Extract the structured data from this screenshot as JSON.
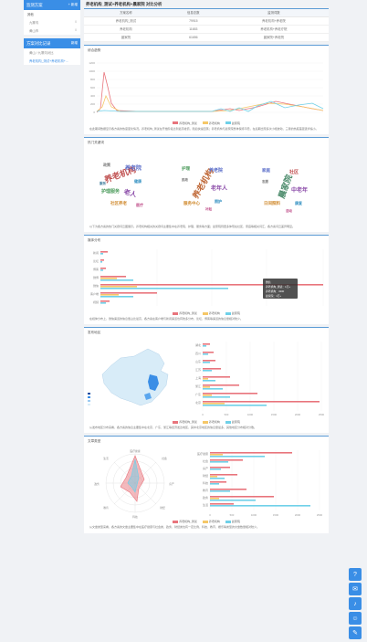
{
  "sidebar": {
    "scheme_header": "监测方案",
    "scheme_add": "+ 新增",
    "scheme_items": [
      {
        "label": "其他",
        "count": ""
      },
      {
        "label": "九寨沟",
        "count": "0"
      },
      {
        "label": "黄山市",
        "count": "0"
      }
    ],
    "record_header": "方案对比记录",
    "record_add": "新增",
    "record_items": [
      "黄山 / 九寨沟对比",
      "养老机构_测试+养老机构+..."
    ]
  },
  "page_title": "养老机构_测试+养老机构+晨家院 对比分析",
  "summary": {
    "headers": [
      "方案名称",
      "信息总数",
      "监测词数"
    ],
    "rows": [
      [
        "养老机构_测试",
        "79915",
        "养老机构+养老院"
      ],
      [
        "养老机构",
        "11653",
        "养老机构+养老疗院"
      ],
      [
        "晨家院",
        "61656",
        "晨家院+养老院"
      ]
    ]
  },
  "trend": {
    "title": "综合趋势",
    "yticks": [
      "0",
      "200",
      "400",
      "600",
      "800",
      "1000",
      "1200"
    ],
    "desc": "在此期间数据显示各方案的热度变化情况。养老机构_测试在开始阶段达到最高峰值，随后快速回落；养老机构与晨家院整体保持平稳，在后期出现多次小幅波动，三者的热度差距逐步缩小。"
  },
  "cloud": {
    "title": "热门关键词",
    "desc": "以下为各方案的热门关键词云图展示。养老机构相关的关键词主要集中在养老院、护理、服务等方面；晨家院则更多体现在社区、家庭等相关词汇，各方案词云差异明显。"
  },
  "media": {
    "title": "媒体分布",
    "categories": [
      "新闻",
      "论坛",
      "博客",
      "微博",
      "微信",
      "客户端",
      "视频"
    ],
    "tooltip": {
      "title": "微信",
      "lines": [
        "养老机构_测试：1万+",
        "养老机构：4300",
        "晨家院：1万+"
      ]
    },
    "desc": "在媒体分布上，微信渠道的信息量占比最高，各方案在客户端与新闻渠道也有较多分布，论坛、博客等渠道的信息量相对较少。"
  },
  "region": {
    "title": "发布地区",
    "provinces": [
      "北京",
      "广东",
      "浙江",
      "上海",
      "江苏",
      "山东",
      "四川",
      "湖北"
    ],
    "xticks": [
      "0",
      "500",
      "1000",
      "1500",
      "2000",
      "2500"
    ],
    "desc": "从发布地区分布来看，各方案的信息主要集中在北京、广东、浙江等经济发达地区，其中北京地区的信息量最多，其他地区分布相对分散。"
  },
  "article": {
    "title": "文章类型",
    "categories": [
      "医疗健康",
      "社会",
      "房产",
      "财经",
      "科技",
      "教育",
      "政务",
      "生活",
      "娱乐"
    ],
    "xticks": [
      "0",
      "500",
      "1000",
      "1500",
      "2000",
      "2500"
    ],
    "desc": "从文章类型来看，各方案的文章主要集中在医疗健康与社会类，政务、财经类也有一定比例，科技、教育、娱乐等类型的文章数量相对较少。"
  },
  "legend": {
    "a": "养老机构_测试",
    "b": "养老机构",
    "c": "晨家院"
  },
  "colors": {
    "a": "#e8747c",
    "b": "#f5c767",
    "c": "#6fd0e8",
    "accent": "#3a8ee6"
  },
  "fab_icons": [
    "question-icon",
    "chat-icon",
    "bell-icon",
    "wechat-icon",
    "mail-icon"
  ]
}
